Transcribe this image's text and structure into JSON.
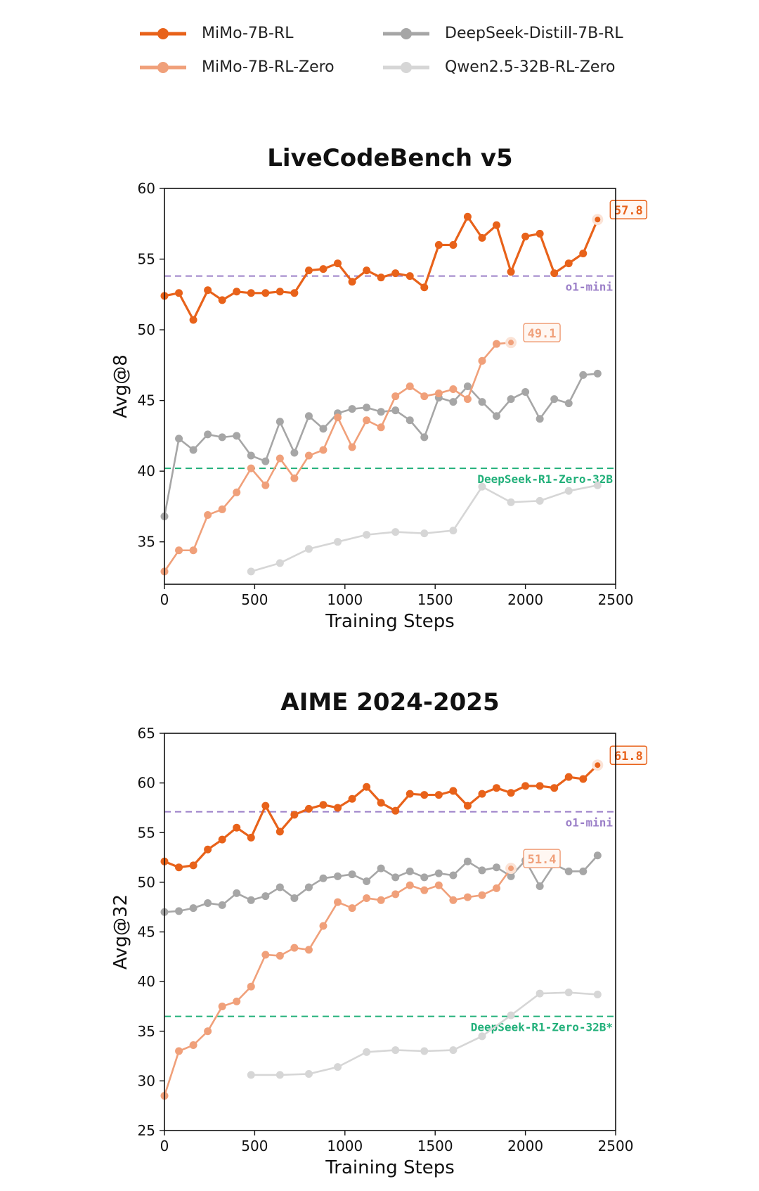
{
  "legend": {
    "mimo_rl": "MiMo-7B-RL",
    "mimo_rl_zero": "MiMo-7B-RL-Zero",
    "deepseek_distill": "DeepSeek-Distill-7B-RL",
    "qwen_zero": "Qwen2.5-32B-RL-Zero"
  },
  "colors": {
    "mimo_rl": "#E8621A",
    "mimo_rl_zero": "#F0A07A",
    "deepseek_distill": "#A6A6A6",
    "qwen_zero": "#D6D6D6",
    "o1_mini": "#9B7FC8",
    "deepseek_r1_zero": "#22B07A"
  },
  "chart_data": [
    {
      "type": "line",
      "title": "LiveCodeBench v5",
      "xlabel": "Training Steps",
      "ylabel": "Avg@8",
      "xlim": [
        0,
        2500
      ],
      "ylim": [
        32,
        60
      ],
      "xticks": [
        0,
        500,
        1000,
        1500,
        2000,
        2500
      ],
      "yticks": [
        35,
        40,
        45,
        50,
        55,
        60
      ],
      "grid": false,
      "series": [
        {
          "key": "mimo_rl",
          "name": "MiMo-7B-RL",
          "x": [
            0,
            80,
            160,
            240,
            320,
            400,
            480,
            560,
            640,
            720,
            800,
            880,
            960,
            1040,
            1120,
            1200,
            1280,
            1360,
            1440,
            1520,
            1600,
            1680,
            1760,
            1840,
            1920,
            2000,
            2080,
            2160,
            2240,
            2320,
            2400
          ],
          "y": [
            52.4,
            52.6,
            50.7,
            52.8,
            52.1,
            52.7,
            52.6,
            52.6,
            52.7,
            52.6,
            54.2,
            54.3,
            54.7,
            53.4,
            54.2,
            53.7,
            54.0,
            53.8,
            53.0,
            56.0,
            56.0,
            58.0,
            56.5,
            57.4,
            54.1,
            56.6,
            56.8,
            54.0,
            54.7,
            55.4,
            57.8
          ],
          "end_label": "57.8"
        },
        {
          "key": "mimo_rl_zero",
          "name": "MiMo-7B-RL-Zero",
          "x": [
            0,
            80,
            160,
            240,
            320,
            400,
            480,
            560,
            640,
            720,
            800,
            880,
            960,
            1040,
            1120,
            1200,
            1280,
            1360,
            1440,
            1520,
            1600,
            1680,
            1760,
            1840,
            1920
          ],
          "y": [
            32.9,
            34.4,
            34.4,
            36.9,
            37.3,
            38.5,
            40.2,
            39.0,
            40.9,
            39.5,
            41.1,
            41.5,
            43.8,
            41.7,
            43.6,
            43.1,
            45.3,
            46.0,
            45.3,
            45.5,
            45.8,
            45.1,
            47.8,
            49.0,
            49.1
          ],
          "end_label": "49.1"
        },
        {
          "key": "deepseek_distill",
          "name": "DeepSeek-Distill-7B-RL",
          "x": [
            0,
            80,
            160,
            240,
            320,
            400,
            480,
            560,
            640,
            720,
            800,
            880,
            960,
            1040,
            1120,
            1200,
            1280,
            1360,
            1440,
            1520,
            1600,
            1680,
            1760,
            1840,
            1920,
            2000,
            2080,
            2160,
            2240,
            2320,
            2400
          ],
          "y": [
            36.8,
            42.3,
            41.5,
            42.6,
            42.4,
            42.5,
            41.1,
            40.7,
            43.5,
            41.3,
            43.9,
            43.0,
            44.1,
            44.4,
            44.5,
            44.2,
            44.3,
            43.6,
            42.4,
            45.2,
            44.9,
            46.0,
            44.9,
            43.9,
            45.1,
            45.6,
            43.7,
            45.1,
            44.8,
            46.8,
            46.9
          ]
        },
        {
          "key": "qwen_zero",
          "name": "Qwen2.5-32B-RL-Zero",
          "x": [
            480,
            640,
            800,
            960,
            1120,
            1280,
            1440,
            1600,
            1760,
            1920,
            2080,
            2240,
            2400
          ],
          "y": [
            32.9,
            33.5,
            34.5,
            35.0,
            35.5,
            35.7,
            35.6,
            35.8,
            38.9,
            37.8,
            37.9,
            38.6,
            39.0
          ]
        }
      ],
      "reference_lines": [
        {
          "key": "o1_mini",
          "label": "o1-mini",
          "y": 53.8
        },
        {
          "key": "deepseek_r1_zero",
          "label": "DeepSeek-R1-Zero-32B",
          "y": 40.2
        }
      ]
    },
    {
      "type": "line",
      "title": "AIME 2024-2025",
      "xlabel": "Training Steps",
      "ylabel": "Avg@32",
      "xlim": [
        0,
        2500
      ],
      "ylim": [
        25,
        65
      ],
      "xticks": [
        0,
        500,
        1000,
        1500,
        2000,
        2500
      ],
      "yticks": [
        25,
        30,
        35,
        40,
        45,
        50,
        55,
        60,
        65
      ],
      "grid": false,
      "series": [
        {
          "key": "mimo_rl",
          "name": "MiMo-7B-RL",
          "x": [
            0,
            80,
            160,
            240,
            320,
            400,
            480,
            560,
            640,
            720,
            800,
            880,
            960,
            1040,
            1120,
            1200,
            1280,
            1360,
            1440,
            1520,
            1600,
            1680,
            1760,
            1840,
            1920,
            2000,
            2080,
            2160,
            2240,
            2320,
            2400
          ],
          "y": [
            52.1,
            51.5,
            51.7,
            53.3,
            54.3,
            55.5,
            54.5,
            57.7,
            55.1,
            56.8,
            57.4,
            57.8,
            57.5,
            58.4,
            59.6,
            58.0,
            57.2,
            58.9,
            58.8,
            58.8,
            59.2,
            57.7,
            58.9,
            59.5,
            59.0,
            59.7,
            59.7,
            59.5,
            60.6,
            60.4,
            61.8
          ],
          "end_label": "61.8"
        },
        {
          "key": "mimo_rl_zero",
          "name": "MiMo-7B-RL-Zero",
          "x": [
            0,
            80,
            160,
            240,
            320,
            400,
            480,
            560,
            640,
            720,
            800,
            880,
            960,
            1040,
            1120,
            1200,
            1280,
            1360,
            1440,
            1520,
            1600,
            1680,
            1760,
            1840,
            1920
          ],
          "y": [
            28.5,
            33.0,
            33.6,
            35.0,
            37.5,
            38.0,
            39.5,
            42.7,
            42.6,
            43.4,
            43.2,
            45.6,
            48.0,
            47.4,
            48.4,
            48.2,
            48.8,
            49.7,
            49.2,
            49.7,
            48.2,
            48.5,
            48.7,
            49.4,
            51.4
          ],
          "end_label": "51.4"
        },
        {
          "key": "deepseek_distill",
          "name": "DeepSeek-Distill-7B-RL",
          "x": [
            0,
            80,
            160,
            240,
            320,
            400,
            480,
            560,
            640,
            720,
            800,
            880,
            960,
            1040,
            1120,
            1200,
            1280,
            1360,
            1440,
            1520,
            1600,
            1680,
            1760,
            1840,
            1920,
            2000,
            2080,
            2160,
            2240,
            2320,
            2400
          ],
          "y": [
            47.0,
            47.1,
            47.4,
            47.9,
            47.7,
            48.9,
            48.2,
            48.6,
            49.5,
            48.4,
            49.5,
            50.4,
            50.6,
            50.8,
            50.1,
            51.4,
            50.5,
            51.1,
            50.5,
            50.9,
            50.7,
            52.1,
            51.2,
            51.5,
            50.6,
            52.2,
            49.6,
            51.8,
            51.1,
            51.1,
            52.7
          ]
        },
        {
          "key": "qwen_zero",
          "name": "Qwen2.5-32B-RL-Zero",
          "x": [
            480,
            640,
            800,
            960,
            1120,
            1280,
            1440,
            1600,
            1760,
            1920,
            2080,
            2240,
            2400
          ],
          "y": [
            30.6,
            30.6,
            30.7,
            31.4,
            32.9,
            33.1,
            33.0,
            33.1,
            34.5,
            36.6,
            38.8,
            38.9,
            38.7
          ]
        }
      ],
      "reference_lines": [
        {
          "key": "o1_mini",
          "label": "o1-mini",
          "y": 57.1
        },
        {
          "key": "deepseek_r1_zero",
          "label": "DeepSeek-R1-Zero-32B*",
          "y": 36.5
        }
      ]
    }
  ]
}
